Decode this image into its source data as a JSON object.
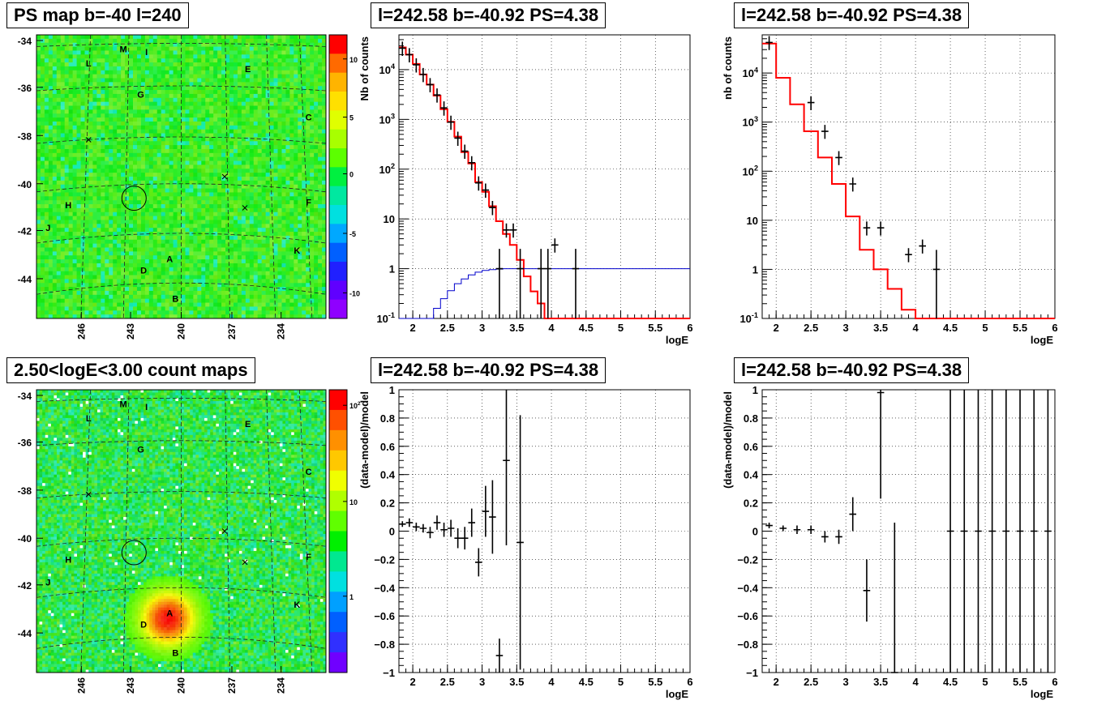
{
  "colors": {
    "frame": "#000000",
    "grid": "#000000",
    "model_red": "#ff0000",
    "model_blue": "#0000cc",
    "data_black": "#000000"
  },
  "chart_data": [
    {
      "id": "ps-map",
      "type": "heatmap",
      "title": "PS map b=-40 l=240",
      "xticks": [
        "246",
        "243",
        "240",
        "237",
        "234"
      ],
      "yticks": [
        "-34",
        "-36",
        "-38",
        "-40",
        "-42",
        "-44"
      ],
      "colorbar_ticks": [
        "10",
        "5",
        "0",
        "-5",
        "-10"
      ],
      "source_labels": [
        "M",
        "I",
        "L",
        "E",
        "G",
        "C",
        "H",
        "F",
        "J",
        "K",
        "A",
        "D",
        "B"
      ]
    },
    {
      "id": "spectrum-1",
      "type": "line",
      "title": "l=242.58 b=-40.92 PS=4.38",
      "xlabel": "logE",
      "ylabel": "Nb of counts",
      "log_y": true,
      "xlim": [
        1.8,
        6
      ],
      "ylim": [
        0.1,
        50000
      ],
      "grid": true,
      "xticks": [
        "2",
        "2.5",
        "3",
        "3.5",
        "4",
        "4.5",
        "5",
        "5.5",
        "6"
      ],
      "yticks": [
        "10^{-1}",
        "1",
        "10",
        "10^{2}",
        "10^{3}",
        "10^{4}"
      ],
      "series": [
        {
          "role": "model-total",
          "edges": [
            1.8,
            1.9,
            2.0,
            2.1,
            2.2,
            2.3,
            2.4,
            2.5,
            2.6,
            2.7,
            2.8,
            2.9,
            3.0,
            3.1,
            3.2,
            3.3,
            3.4,
            3.5,
            3.6,
            3.7,
            3.8,
            3.9,
            4.0,
            6.0
          ],
          "values": [
            28000,
            20000,
            13000,
            8000,
            5000,
            3000,
            1600,
            900,
            450,
            220,
            130,
            55,
            35,
            18,
            9,
            5,
            3,
            1.5,
            0.7,
            0.35,
            0.2,
            0.1,
            0.1
          ]
        },
        {
          "role": "model-ps",
          "edges": [
            1.8,
            2.2,
            2.3,
            2.4,
            2.5,
            2.6,
            2.7,
            2.8,
            2.9,
            3.0,
            3.1,
            3.2,
            3.3,
            3.4,
            3.5,
            6.0
          ],
          "values": [
            0.05,
            0.1,
            0.16,
            0.25,
            0.36,
            0.5,
            0.62,
            0.75,
            0.85,
            0.92,
            0.96,
            0.98,
            1.0,
            1.0,
            1.0,
            1.0
          ]
        },
        {
          "role": "data",
          "points": [
            [
              1.85,
              27000
            ],
            [
              1.95,
              20000
            ],
            [
              2.05,
              12500
            ],
            [
              2.15,
              8000
            ],
            [
              2.25,
              5000
            ],
            [
              2.35,
              3100
            ],
            [
              2.45,
              1700
            ],
            [
              2.55,
              880
            ],
            [
              2.65,
              420
            ],
            [
              2.75,
              230
            ],
            [
              2.85,
              135
            ],
            [
              2.95,
              53
            ],
            [
              3.05,
              38
            ],
            [
              3.15,
              17
            ],
            [
              3.25,
              1
            ],
            [
              3.35,
              6
            ],
            [
              3.45,
              6
            ],
            [
              3.55,
              1
            ],
            [
              3.85,
              1
            ],
            [
              3.95,
              1
            ],
            [
              4.05,
              3
            ],
            [
              4.35,
              1
            ]
          ]
        }
      ]
    },
    {
      "id": "spectrum-2",
      "type": "line",
      "title": "l=242.58 b=-40.92 PS=4.38",
      "xlabel": "logE",
      "ylabel": "nb of counts",
      "log_y": true,
      "xlim": [
        1.8,
        6
      ],
      "ylim": [
        0.1,
        60000
      ],
      "grid": true,
      "xticks": [
        "2",
        "2.5",
        "3",
        "3.5",
        "4",
        "4.5",
        "5",
        "5.5",
        "6"
      ],
      "yticks": [
        "10^{-1}",
        "1",
        "10",
        "10^{2}",
        "10^{3}",
        "10^{4}"
      ],
      "series": [
        {
          "role": "model-total",
          "edges": [
            1.8,
            2.0,
            2.2,
            2.4,
            2.6,
            2.8,
            3.0,
            3.2,
            3.4,
            3.6,
            3.8,
            4.0,
            6.0
          ],
          "values": [
            40000,
            8000,
            2300,
            650,
            190,
            55,
            12,
            2.5,
            1,
            0.4,
            0.15,
            0.1
          ]
        },
        {
          "role": "data",
          "points": [
            [
              1.9,
              42000
            ],
            [
              2.5,
              2500
            ],
            [
              2.7,
              650
            ],
            [
              2.9,
              190
            ],
            [
              3.1,
              55
            ],
            [
              3.3,
              7
            ],
            [
              3.5,
              7
            ],
            [
              3.9,
              2
            ],
            [
              4.1,
              3
            ],
            [
              4.3,
              1
            ]
          ]
        }
      ]
    },
    {
      "id": "count-map",
      "type": "heatmap",
      "title": "2.50<logE<3.00 count maps",
      "xticks": [
        "246",
        "243",
        "240",
        "237",
        "234"
      ],
      "yticks": [
        "-34",
        "-36",
        "-38",
        "-40",
        "-42",
        "-44"
      ],
      "colorbar_ticks": [
        "10^{2}",
        "10",
        "1"
      ],
      "source_labels": [
        "M",
        "I",
        "L",
        "E",
        "G",
        "C",
        "H",
        "F",
        "J",
        "K",
        "A",
        "D",
        "B"
      ]
    },
    {
      "id": "residual-1",
      "type": "scatter",
      "title": "l=242.58 b=-40.92 PS=4.38",
      "xlabel": "logE",
      "ylabel": "(data-model)/model",
      "xlim": [
        1.8,
        6
      ],
      "ylim": [
        -1,
        1
      ],
      "grid": true,
      "xticks": [
        "2",
        "2.5",
        "3",
        "3.5",
        "4",
        "4.5",
        "5",
        "5.5",
        "6"
      ],
      "yticks": [
        "−1",
        "−0.8",
        "−0.6",
        "−0.4",
        "−0.2",
        "0",
        "0.2",
        "0.4",
        "0.6",
        "0.8",
        "1"
      ],
      "points": [
        [
          1.85,
          0.05,
          0.02
        ],
        [
          1.95,
          0.06,
          0.03
        ],
        [
          2.05,
          0.03,
          0.03
        ],
        [
          2.15,
          0.02,
          0.03
        ],
        [
          2.25,
          -0.01,
          0.04
        ],
        [
          2.35,
          0.06,
          0.05
        ],
        [
          2.45,
          0.01,
          0.05
        ],
        [
          2.55,
          0.02,
          0.06
        ],
        [
          2.65,
          -0.05,
          0.07
        ],
        [
          2.75,
          -0.05,
          0.08
        ],
        [
          2.85,
          0.06,
          0.1
        ],
        [
          2.95,
          -0.22,
          0.1
        ],
        [
          3.05,
          0.14,
          0.18
        ],
        [
          3.15,
          0.1,
          0.26
        ],
        [
          3.25,
          -0.88,
          0.12
        ],
        [
          3.35,
          0.5,
          0.6
        ],
        [
          3.55,
          -0.08,
          0.9
        ]
      ]
    },
    {
      "id": "residual-2",
      "type": "scatter",
      "title": "l=242.58 b=-40.92 PS=4.38",
      "xlabel": "logE",
      "ylabel": "(data-model)/model",
      "xlim": [
        1.8,
        6
      ],
      "ylim": [
        -1,
        1
      ],
      "grid": true,
      "xticks": [
        "2",
        "2.5",
        "3",
        "3.5",
        "4",
        "4.5",
        "5",
        "5.5",
        "6"
      ],
      "yticks": [
        "−1",
        "−0.8",
        "−0.6",
        "−0.4",
        "−0.2",
        "0",
        "0.2",
        "0.4",
        "0.6",
        "0.8",
        "1"
      ],
      "points": [
        [
          1.9,
          0.04,
          0.02
        ],
        [
          2.1,
          0.02,
          0.02
        ],
        [
          2.3,
          0.01,
          0.03
        ],
        [
          2.5,
          0.01,
          0.03
        ],
        [
          2.7,
          -0.04,
          0.04
        ],
        [
          2.9,
          -0.04,
          0.05
        ],
        [
          3.1,
          0.12,
          0.12
        ],
        [
          3.3,
          -0.42,
          0.22
        ],
        [
          3.5,
          0.98,
          0.75
        ],
        [
          3.7,
          -1,
          1.06
        ],
        [
          4.5,
          0,
          1
        ],
        [
          4.7,
          0,
          1
        ],
        [
          4.9,
          0,
          1
        ],
        [
          5.1,
          0,
          1
        ],
        [
          5.3,
          0,
          1
        ],
        [
          5.5,
          0,
          1
        ],
        [
          5.7,
          0,
          1
        ],
        [
          5.9,
          0,
          1
        ]
      ]
    }
  ]
}
